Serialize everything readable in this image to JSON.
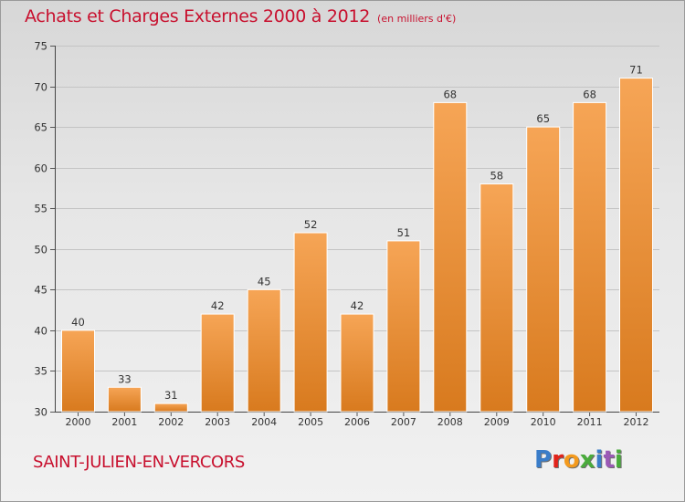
{
  "header": {
    "title": "Achats et Charges Externes 2000 à 2012",
    "unit": "(en milliers d'€)"
  },
  "footer": {
    "commune": "SAINT-JULIEN-EN-VERCORS",
    "logo_letters": [
      "P",
      "r",
      "o",
      "x",
      "i",
      "t",
      "i"
    ],
    "logo_colors": [
      "#3a7dc9",
      "#e2231a",
      "#f39a1e",
      "#4aab3c",
      "#3a7dc9",
      "#9b59b6",
      "#4aab3c"
    ]
  },
  "colors": {
    "bar_top": "#f6a556",
    "bar_bottom": "#d87a1e",
    "accent": "#c8102e"
  },
  "chart_data": {
    "type": "bar",
    "categories": [
      "2000",
      "2001",
      "2002",
      "2003",
      "2004",
      "2005",
      "2006",
      "2007",
      "2008",
      "2009",
      "2010",
      "2011",
      "2012"
    ],
    "values": [
      40,
      33,
      31,
      42,
      45,
      52,
      42,
      51,
      68,
      58,
      65,
      68,
      71
    ],
    "ylim": [
      30,
      75
    ],
    "yticks": [
      30,
      35,
      40,
      45,
      50,
      55,
      60,
      65,
      70,
      75
    ],
    "grid": true
  }
}
